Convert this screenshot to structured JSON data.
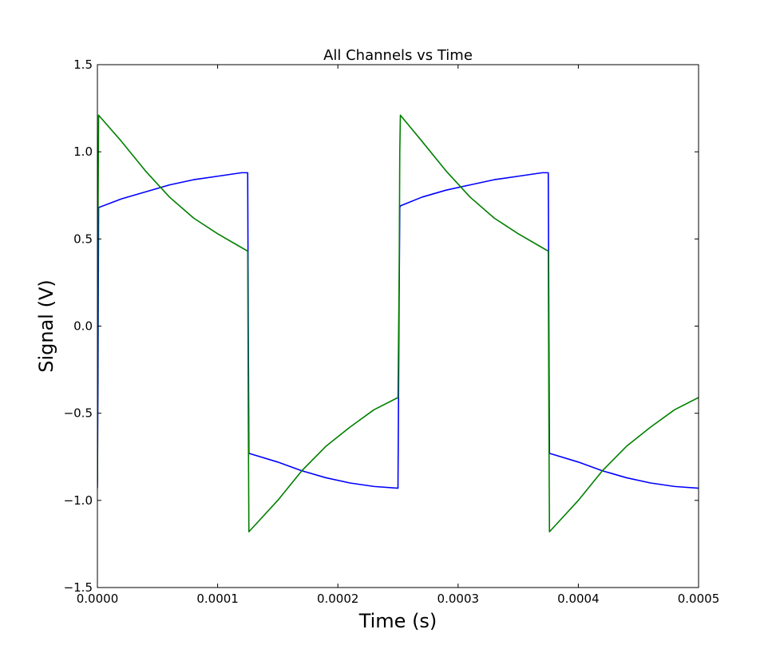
{
  "chart_data": {
    "type": "line",
    "title": "All Channels vs Time",
    "xlabel": "Time (s)",
    "ylabel": "Signal (V)",
    "xlim": [
      0,
      0.0005
    ],
    "ylim": [
      -1.5,
      1.5
    ],
    "grid": false,
    "x_ticks": [
      0,
      0.0001,
      0.0002,
      0.0003,
      0.0004,
      0.0005
    ],
    "x_tick_labels": [
      "0.0000",
      "0.0001",
      "0.0002",
      "0.0003",
      "0.0004",
      "0.0005"
    ],
    "y_ticks": [
      1.5,
      1.0,
      0.5,
      0.0,
      -0.5,
      -1.0,
      -1.5
    ],
    "y_tick_labels": [
      "1.5",
      "1.0",
      "0.5",
      "0.0",
      "−0.5",
      "−1.0",
      "−1.5"
    ],
    "series": [
      {
        "color": "#0000ff",
        "x": [
          0,
          5e-07,
          1e-06,
          2e-05,
          4e-05,
          6e-05,
          8e-05,
          0.0001,
          0.00012,
          0.000125,
          0.0001255,
          0.000126,
          0.00015,
          0.00017,
          0.00019,
          0.00021,
          0.00023,
          0.00025,
          0.000251,
          0.0002515,
          0.000252,
          0.00027,
          0.00029,
          0.00031,
          0.00033,
          0.00035,
          0.00037,
          0.000375,
          0.0003755,
          0.000376,
          0.0004,
          0.00042,
          0.00044,
          0.00046,
          0.00048,
          0.0005
        ],
        "y": [
          -0.93,
          -0.3,
          0.68,
          0.73,
          0.77,
          0.81,
          0.84,
          0.86,
          0.88,
          0.88,
          0.0,
          -0.73,
          -0.78,
          -0.83,
          -0.87,
          -0.9,
          -0.92,
          -0.93,
          0.2,
          0.68,
          0.69,
          0.74,
          0.78,
          0.81,
          0.84,
          0.86,
          0.88,
          0.88,
          0.0,
          -0.73,
          -0.78,
          -0.83,
          -0.87,
          -0.9,
          -0.92,
          -0.93
        ]
      },
      {
        "color": "#008000",
        "x": [
          0,
          5e-07,
          1e-06,
          2e-05,
          4e-05,
          6e-05,
          8e-05,
          0.0001,
          0.00012,
          0.000125,
          0.0001255,
          0.000126,
          0.00015,
          0.00017,
          0.00019,
          0.00021,
          0.00023,
          0.00025,
          0.000251,
          0.0002515,
          0.000252,
          0.00027,
          0.00029,
          0.00031,
          0.00033,
          0.00035,
          0.00037,
          0.000375,
          0.0003755,
          0.000376,
          0.0004,
          0.00042,
          0.00044,
          0.00046,
          0.00048,
          0.0005
        ],
        "y": [
          -0.9,
          0.6,
          1.21,
          1.06,
          0.89,
          0.74,
          0.62,
          0.53,
          0.45,
          0.43,
          -0.5,
          -1.18,
          -1.0,
          -0.83,
          -0.69,
          -0.58,
          -0.48,
          -0.41,
          0.3,
          1.0,
          1.21,
          1.06,
          0.89,
          0.74,
          0.62,
          0.53,
          0.45,
          0.43,
          -0.5,
          -1.18,
          -1.0,
          -0.83,
          -0.69,
          -0.58,
          -0.48,
          -0.41
        ]
      }
    ]
  }
}
